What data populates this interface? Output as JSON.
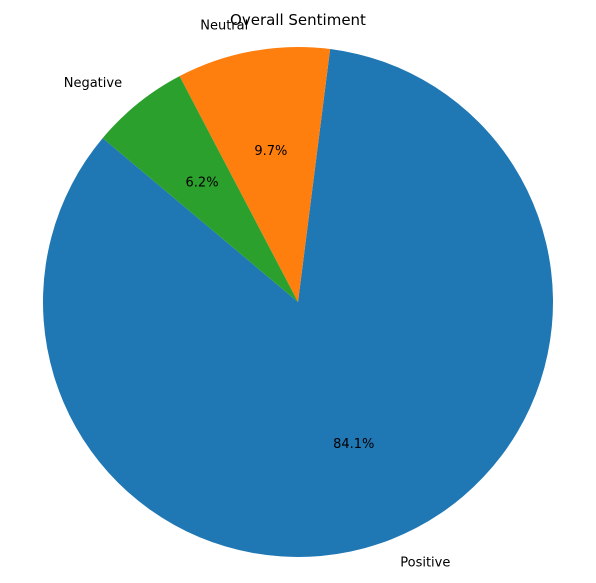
{
  "chart_data": {
    "type": "pie",
    "title": "Overall Sentiment",
    "start_angle_deg": 140,
    "direction": "counterclockwise",
    "slices": [
      {
        "label": "Positive",
        "value": 84.1,
        "pct_label": "84.1%",
        "color": "#1f77b4"
      },
      {
        "label": "Neutral",
        "value": 9.7,
        "pct_label": "9.7%",
        "color": "#ff7f0e"
      },
      {
        "label": "Negative",
        "value": 6.2,
        "pct_label": "6.2%",
        "color": "#2ca02c"
      }
    ]
  }
}
